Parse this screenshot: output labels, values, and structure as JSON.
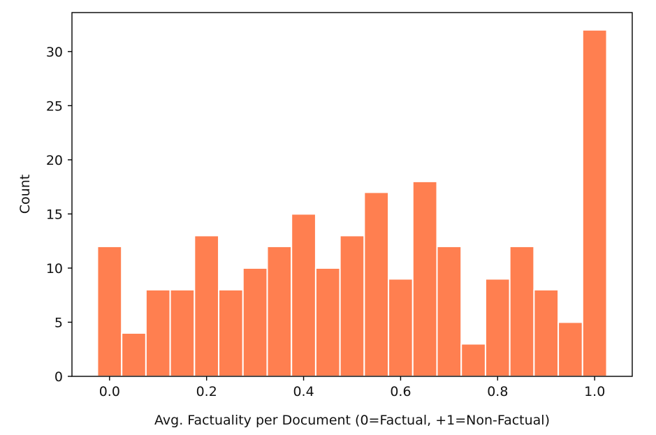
{
  "chart_data": {
    "type": "bar",
    "title": "",
    "xlabel": "Avg. Factuality per Document (0=Factual, +1=Non-Factual)",
    "ylabel": "Count",
    "bin_width": 0.05,
    "bins": [
      {
        "left": -0.025,
        "right": 0.025,
        "count": 12
      },
      {
        "left": 0.025,
        "right": 0.075,
        "count": 4
      },
      {
        "left": 0.075,
        "right": 0.125,
        "count": 8
      },
      {
        "left": 0.125,
        "right": 0.175,
        "count": 8
      },
      {
        "left": 0.175,
        "right": 0.225,
        "count": 13
      },
      {
        "left": 0.225,
        "right": 0.275,
        "count": 8
      },
      {
        "left": 0.275,
        "right": 0.325,
        "count": 10
      },
      {
        "left": 0.325,
        "right": 0.375,
        "count": 12
      },
      {
        "left": 0.375,
        "right": 0.425,
        "count": 15
      },
      {
        "left": 0.425,
        "right": 0.475,
        "count": 10
      },
      {
        "left": 0.475,
        "right": 0.525,
        "count": 13
      },
      {
        "left": 0.525,
        "right": 0.575,
        "count": 17
      },
      {
        "left": 0.575,
        "right": 0.625,
        "count": 9
      },
      {
        "left": 0.625,
        "right": 0.675,
        "count": 18
      },
      {
        "left": 0.675,
        "right": 0.725,
        "count": 12
      },
      {
        "left": 0.725,
        "right": 0.775,
        "count": 3
      },
      {
        "left": 0.775,
        "right": 0.825,
        "count": 9
      },
      {
        "left": 0.825,
        "right": 0.875,
        "count": 12
      },
      {
        "left": 0.875,
        "right": 0.925,
        "count": 8
      },
      {
        "left": 0.925,
        "right": 0.975,
        "count": 5
      },
      {
        "left": 0.975,
        "right": 1.025,
        "count": 32
      }
    ],
    "xlim": [
      -0.0775,
      1.0775
    ],
    "ylim": [
      0,
      33.6
    ],
    "xticks": [
      0.0,
      0.2,
      0.4,
      0.6,
      0.8,
      1.0
    ],
    "xtick_labels": [
      "0.0",
      "0.2",
      "0.4",
      "0.6",
      "0.8",
      "1.0"
    ],
    "yticks": [
      0,
      5,
      10,
      15,
      20,
      25,
      30
    ],
    "ytick_labels": [
      "0",
      "5",
      "10",
      "15",
      "20",
      "25",
      "30"
    ],
    "bar_color": "#FF7F50",
    "edge_color": "#FFFFFF",
    "grid": false,
    "legend": "none"
  }
}
